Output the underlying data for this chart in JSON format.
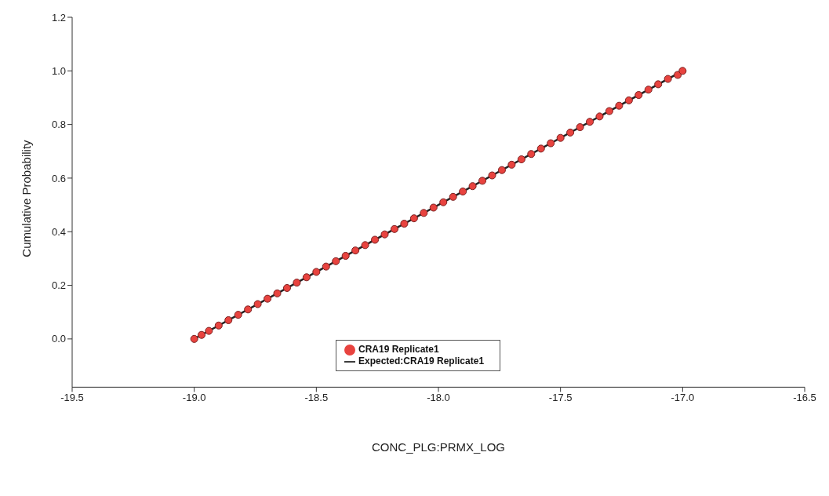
{
  "chart_data": {
    "type": "scatter",
    "xlabel": "CONC_PLG:PRMX_LOG",
    "ylabel": "Cumulative Probability",
    "xlim": [
      -19.5,
      -16.5
    ],
    "ylim": [
      -0.18,
      1.2
    ],
    "xticks": [
      -19.5,
      {
        "value": -19,
        "label": "-19.0"
      },
      -18.5,
      {
        "value": -18,
        "label": "-18.0"
      },
      -17.5,
      {
        "value": -17,
        "label": "-17.0"
      },
      -16.5
    ],
    "yticks": [
      {
        "value": 0,
        "label": "0.0"
      },
      0.2,
      0.4,
      0.6,
      0.8,
      {
        "value": 1,
        "label": "1.0"
      },
      1.2
    ],
    "grid": false,
    "legend": "bottom",
    "marker": "circle",
    "series": [
      {
        "name": "CRA19 Replicate1",
        "color": "#e8433f",
        "x": [
          -19.0,
          -18.97,
          -18.94,
          -18.9,
          -18.86,
          -18.82,
          -18.78,
          -18.74,
          -18.7,
          -18.66,
          -18.62,
          -18.58,
          -18.54,
          -18.5,
          -18.46,
          -18.42,
          -18.38,
          -18.34,
          -18.3,
          -18.26,
          -18.22,
          -18.18,
          -18.14,
          -18.1,
          -18.06,
          -18.02,
          -17.98,
          -17.94,
          -17.9,
          -17.86,
          -17.82,
          -17.78,
          -17.74,
          -17.7,
          -17.66,
          -17.62,
          -17.58,
          -17.54,
          -17.5,
          -17.46,
          -17.42,
          -17.38,
          -17.34,
          -17.3,
          -17.26,
          -17.22,
          -17.18,
          -17.14,
          -17.1,
          -17.06,
          -17.02,
          -17.0
        ],
        "values": [
          0.0,
          0.015,
          0.03,
          0.05,
          0.07,
          0.09,
          0.11,
          0.13,
          0.15,
          0.17,
          0.19,
          0.21,
          0.23,
          0.25,
          0.27,
          0.29,
          0.31,
          0.33,
          0.35,
          0.37,
          0.39,
          0.41,
          0.43,
          0.45,
          0.47,
          0.49,
          0.51,
          0.53,
          0.55,
          0.57,
          0.59,
          0.61,
          0.63,
          0.65,
          0.67,
          0.69,
          0.71,
          0.73,
          0.75,
          0.77,
          0.79,
          0.81,
          0.83,
          0.85,
          0.87,
          0.89,
          0.91,
          0.93,
          0.95,
          0.97,
          0.985,
          1.0
        ]
      },
      {
        "name": "Expected:CRA19 Replicate1",
        "type": "line",
        "color": "#222222",
        "marker": "none",
        "line_style": "solid",
        "x": [
          -19.0,
          -17.0
        ],
        "values": [
          0.0,
          1.0
        ]
      }
    ]
  }
}
